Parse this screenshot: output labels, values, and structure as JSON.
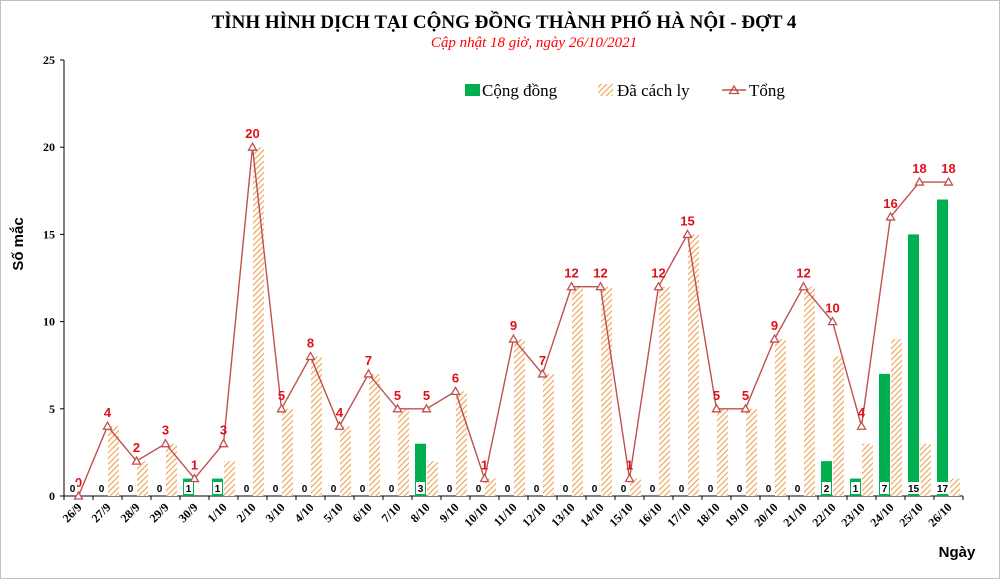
{
  "chart_data": {
    "type": "bar",
    "title": "TÌNH HÌNH DỊCH TẠI CỘNG ĐỒNG THÀNH PHỐ HÀ NỘI - ĐỢT 4",
    "subtitle": "Cập nhật 18 giờ, ngày 26/10/2021",
    "xlabel": "Ngày",
    "ylabel": "Số mắc",
    "ylim": [
      0,
      25
    ],
    "yticks": [
      "0",
      "5",
      "10",
      "15",
      "20",
      "25"
    ],
    "legend_position": "top-right",
    "categories": [
      "26/9",
      "27/9",
      "28/9",
      "29/9",
      "30/9",
      "1/10",
      "2/10",
      "3/10",
      "4/10",
      "5/10",
      "6/10",
      "7/10",
      "8/10",
      "9/10",
      "10/10",
      "11/10",
      "12/10",
      "13/10",
      "14/10",
      "15/10",
      "16/10",
      "17/10",
      "18/10",
      "19/10",
      "20/10",
      "21/10",
      "22/10",
      "23/10",
      "24/10",
      "25/10",
      "26/10"
    ],
    "series": [
      {
        "name": "Cộng đồng",
        "kind": "bar",
        "color": "#00b050",
        "values": [
          0,
          0,
          0,
          0,
          1,
          1,
          0,
          0,
          0,
          0,
          0,
          0,
          3,
          0,
          0,
          0,
          0,
          0,
          0,
          0,
          0,
          0,
          0,
          0,
          0,
          0,
          2,
          1,
          7,
          15,
          17
        ],
        "labels": [
          "0",
          "0",
          "0",
          "0",
          "1",
          "1",
          "0",
          "0",
          "0",
          "0",
          "0",
          "0",
          "3",
          "0",
          "0",
          "0",
          "0",
          "0",
          "0",
          "0",
          "0",
          "0",
          "0",
          "0",
          "0",
          "0",
          "2",
          "1",
          "7",
          "15",
          "17"
        ]
      },
      {
        "name": "Đã cách ly",
        "kind": "hatched-bar",
        "color": "#f4a460",
        "values": [
          0,
          4,
          2,
          3,
          0,
          2,
          20,
          5,
          8,
          4,
          7,
          5,
          2,
          6,
          1,
          9,
          7,
          12,
          12,
          1,
          12,
          15,
          5,
          5,
          9,
          12,
          8,
          3,
          9,
          3,
          1
        ]
      },
      {
        "name": "Tổng",
        "kind": "line",
        "color": "#c0504d",
        "values": [
          0,
          4,
          2,
          3,
          1,
          3,
          20,
          5,
          8,
          4,
          7,
          5,
          5,
          6,
          1,
          9,
          7,
          12,
          12,
          1,
          12,
          15,
          5,
          5,
          9,
          12,
          10,
          4,
          16,
          18,
          18
        ],
        "labels": [
          "0",
          "4",
          "2",
          "3",
          "1",
          "3",
          "20",
          "5",
          "8",
          "4",
          "7",
          "5",
          "5",
          "6",
          "1",
          "9",
          "7",
          "12",
          "12",
          "1",
          "12",
          "15",
          "5",
          "5",
          "9",
          "12",
          "10",
          "4",
          "16",
          "18",
          "18"
        ]
      }
    ]
  }
}
